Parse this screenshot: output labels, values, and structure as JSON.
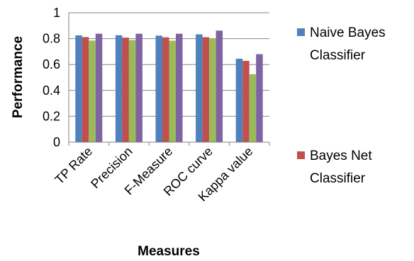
{
  "chart_data": {
    "type": "bar",
    "categories": [
      "TP Rate",
      "Precision",
      "F-Measure",
      "ROC curve",
      "Kappa value"
    ],
    "series": [
      {
        "name": "Naive Bayes Classifier",
        "color": "#4F81BD",
        "values": [
          0.825,
          0.826,
          0.823,
          0.833,
          0.645
        ]
      },
      {
        "name": "Bayes Net Classifier",
        "color": "#C0504D",
        "values": [
          0.812,
          0.808,
          0.81,
          0.811,
          0.628
        ]
      },
      {
        "name": "",
        "color": "#9BBB59",
        "values": [
          0.785,
          0.789,
          0.784,
          0.8,
          0.525
        ]
      },
      {
        "name": "",
        "color": "#8064A2",
        "values": [
          0.838,
          0.838,
          0.838,
          0.862,
          0.68
        ]
      }
    ],
    "title": "",
    "xlabel": "Measures",
    "ylabel": "Performance",
    "ylim": [
      0,
      1
    ],
    "yticks": [
      "0",
      "0.2",
      "0.4",
      "0.6",
      "0.8",
      "1"
    ],
    "grid": true,
    "legend": {
      "position": "right",
      "entries": [
        {
          "line1": "Naive Bayes",
          "line2": "Classifier"
        },
        {
          "line1": "Bayes Net",
          "line2": "Classifier"
        }
      ]
    }
  }
}
